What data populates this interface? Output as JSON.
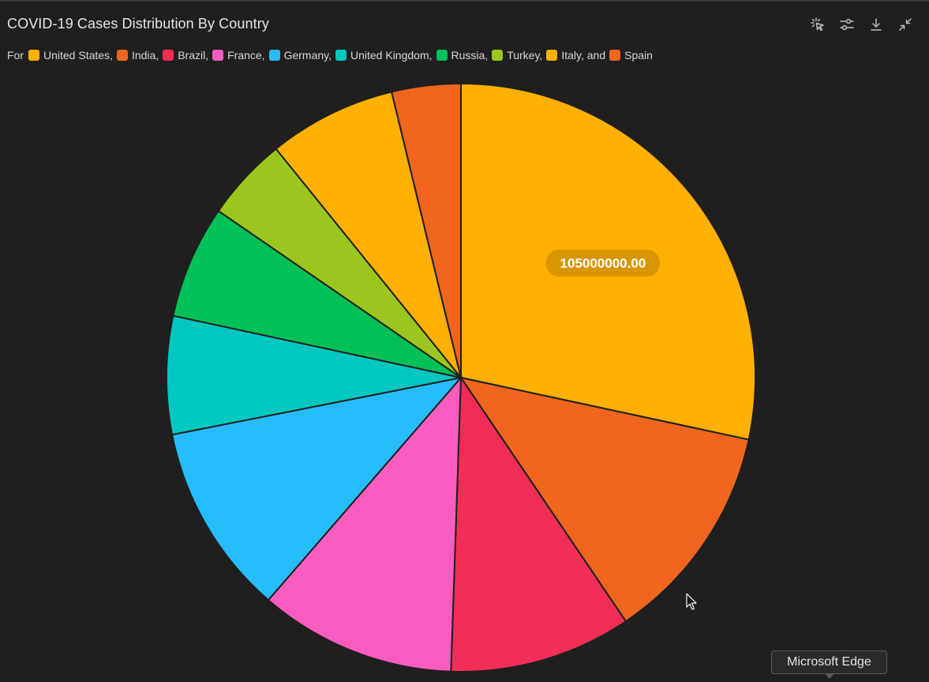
{
  "chart_data": {
    "type": "pie",
    "title": "COVID-19 Cases Distribution By Country",
    "legend_prefix": "For",
    "legend_position": "top-left",
    "categories": [
      "United States",
      "India",
      "Brazil",
      "France",
      "Germany",
      "United Kingdom",
      "Russia",
      "Turkey",
      "Italy",
      "Spain"
    ],
    "legend_labels": [
      "United States,",
      "India,",
      "Brazil,",
      "France,",
      "Germany,",
      "United Kingdom,",
      "Russia,",
      "Turkey,",
      "Italy, and",
      "Spain"
    ],
    "values": [
      105000000,
      45000000,
      37000000,
      40000000,
      39000000,
      24000000,
      23000000,
      17000000,
      26000000,
      14000000
    ],
    "colors": [
      "#FFB000",
      "#F0661F",
      "#F22E56",
      "#F85CBF",
      "#26BCF9",
      "#00C8C0",
      "#00C158",
      "#9BC61D",
      "#FFB000",
      "#F0661F"
    ],
    "data_label": "105000000.00"
  },
  "toolbar": {
    "icons": [
      "select-icon",
      "settings-sliders-icon",
      "download-icon",
      "collapse-icon"
    ]
  },
  "tooltip": {
    "text": "Microsoft Edge"
  }
}
